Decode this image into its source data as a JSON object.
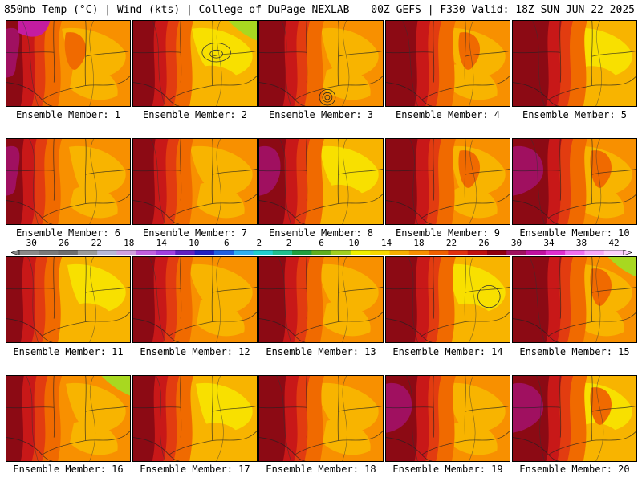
{
  "header": {
    "left_title": "850mb Temp (°C) | Wind (kts) | College of DuPage NEXLAB",
    "right_title": "00Z GEFS | F330 Valid: 18Z SUN JUN 22 2025"
  },
  "members": [
    {
      "label": "Ensemble Member: 1"
    },
    {
      "label": "Ensemble Member: 2"
    },
    {
      "label": "Ensemble Member: 3"
    },
    {
      "label": "Ensemble Member: 4"
    },
    {
      "label": "Ensemble Member: 5"
    },
    {
      "label": "Ensemble Member: 6"
    },
    {
      "label": "Ensemble Member: 7"
    },
    {
      "label": "Ensemble Member: 8"
    },
    {
      "label": "Ensemble Member: 9"
    },
    {
      "label": "Ensemble Member: 10"
    },
    {
      "label": "Ensemble Member: 11"
    },
    {
      "label": "Ensemble Member: 12"
    },
    {
      "label": "Ensemble Member: 13"
    },
    {
      "label": "Ensemble Member: 14"
    },
    {
      "label": "Ensemble Member: 15"
    },
    {
      "label": "Ensemble Member: 16"
    },
    {
      "label": "Ensemble Member: 17"
    },
    {
      "label": "Ensemble Member: 18"
    },
    {
      "label": "Ensemble Member: 19"
    },
    {
      "label": "Ensemble Member: 20"
    }
  ],
  "colorbar": {
    "labels": [
      "−30",
      "−26",
      "−22",
      "−18",
      "−14",
      "−10",
      "−6",
      "−2",
      "2",
      "6",
      "10",
      "14",
      "18",
      "22",
      "26",
      "30",
      "34",
      "38",
      "42"
    ],
    "colors": [
      "#8a8a8a",
      "#7a7a7a",
      "#6e6e6e",
      "#9a9a9a",
      "#b8b8d8",
      "#d0a0e0",
      "#c060e0",
      "#a040e0",
      "#6020c0",
      "#2020c0",
      "#2060e0",
      "#30b0f0",
      "#20d0d0",
      "#20c090",
      "#20a040",
      "#60b020",
      "#a0d020",
      "#f0f000",
      "#f8d800",
      "#f8b000",
      "#f89000",
      "#f06000",
      "#e03010",
      "#c01010",
      "#900010",
      "#a01060",
      "#c010a0",
      "#e030d0",
      "#f070f0",
      "#f8a8f8",
      "#fcd0fc"
    ],
    "temp_colors": {
      "t14": "#f8e000",
      "t18": "#f8b400",
      "t20": "#f89000",
      "t22": "#f06a00",
      "t24": "#e23c10",
      "t26": "#c81818",
      "t28": "#8c0a14",
      "t30": "#a01060",
      "t32": "#c41ca0"
    }
  }
}
